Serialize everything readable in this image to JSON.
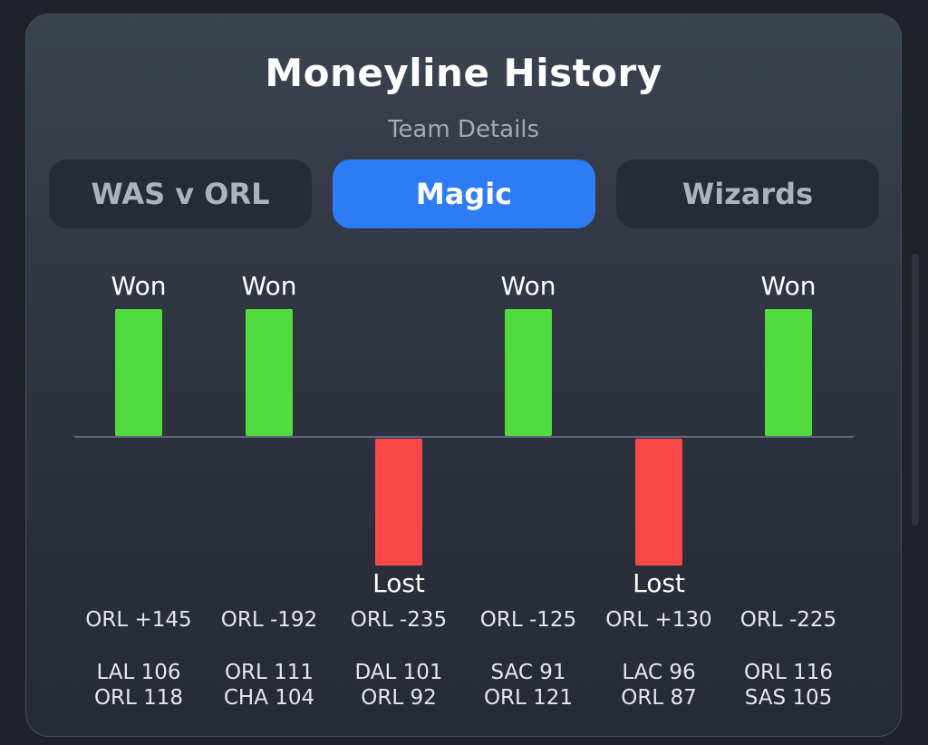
{
  "header": {
    "title": "Moneyline History",
    "subtitle": "Team Details"
  },
  "tabs": [
    {
      "label": "WAS v ORL",
      "active": false
    },
    {
      "label": "Magic",
      "active": true
    },
    {
      "label": "Wizards",
      "active": false
    }
  ],
  "colors": {
    "won": "#52db3f",
    "lost": "#fb4848",
    "accent": "#2d7cf6"
  },
  "games": [
    {
      "result": "Won",
      "odds": "ORL +145",
      "score_line1": "LAL 106",
      "score_line2": "ORL 118"
    },
    {
      "result": "Won",
      "odds": "ORL -192",
      "score_line1": "ORL 111",
      "score_line2": "CHA 104"
    },
    {
      "result": "Lost",
      "odds": "ORL -235",
      "score_line1": "DAL 101",
      "score_line2": "ORL 92"
    },
    {
      "result": "Won",
      "odds": "ORL -125",
      "score_line1": "SAC 91",
      "score_line2": "ORL 121"
    },
    {
      "result": "Lost",
      "odds": "ORL +130",
      "score_line1": "LAC 96",
      "score_line2": "ORL 87"
    },
    {
      "result": "Won",
      "odds": "ORL -225",
      "score_line1": "ORL 116",
      "score_line2": "SAS 105"
    }
  ]
}
